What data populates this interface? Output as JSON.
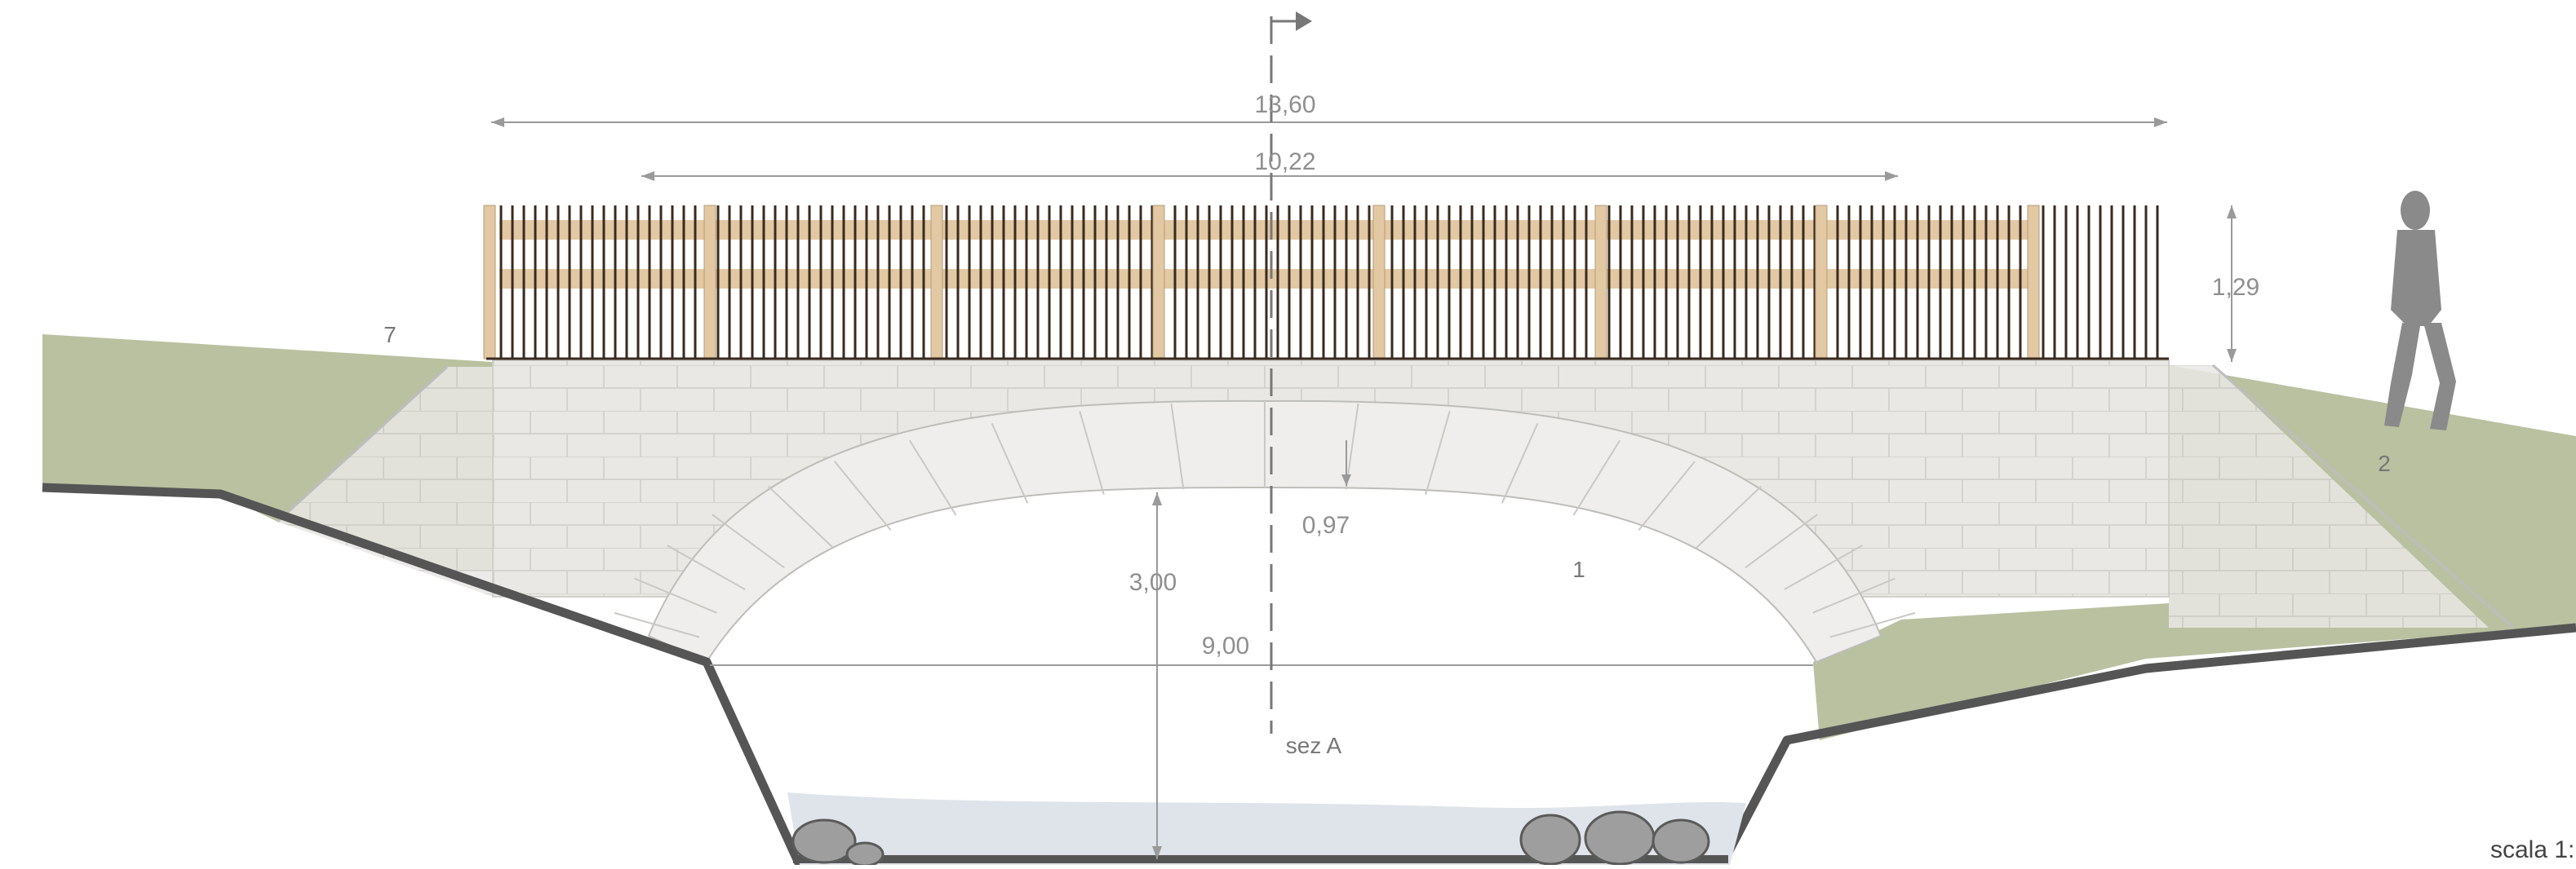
{
  "drawing": {
    "dimensions": {
      "overall_length": "13,60",
      "railing_length": "10,22",
      "railing_height": "1,29",
      "arch_thickness": "0,97",
      "arch_rise": "3,00",
      "arch_span": "9,00"
    },
    "callouts": {
      "left_bank": "7",
      "right_bank": "2",
      "masonry": "1"
    },
    "section_label": "sez A",
    "scale_label": "scala 1:"
  },
  "colors": {
    "masonry": "#e9e8e5",
    "masonry_joint": "#d2d1cd",
    "arch_stone": "#efeeec",
    "grass": "#b7bf9e",
    "ground_line": "#555555",
    "railing_post": "#3a2a1e",
    "railing_wood": "#e2c9a4",
    "water": "#dfe4ea",
    "dimension_line": "#9a9a9a"
  }
}
